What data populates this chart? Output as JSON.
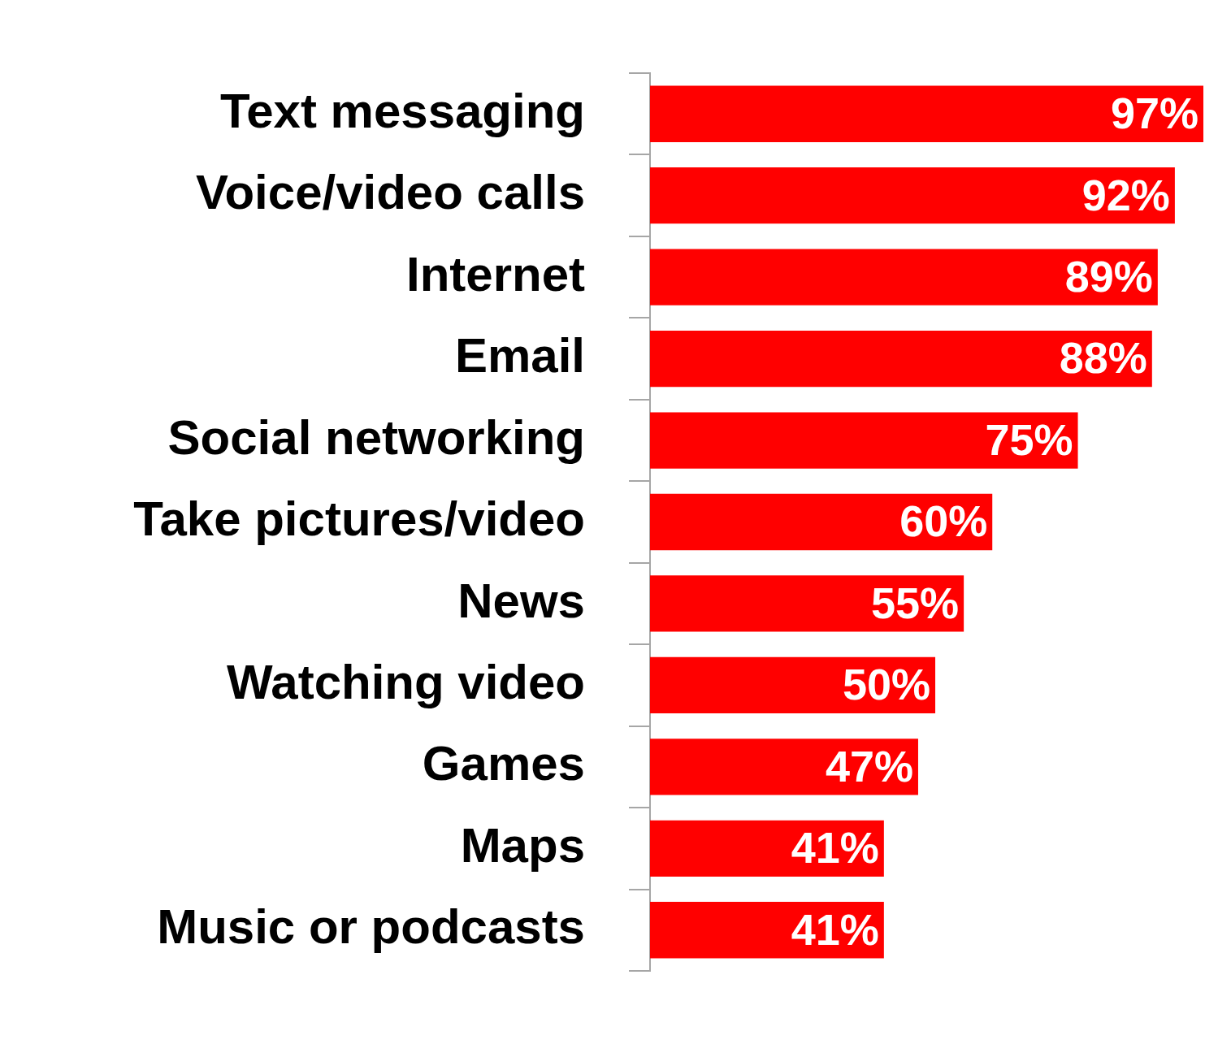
{
  "chart_data": {
    "type": "bar",
    "orientation": "horizontal",
    "categories": [
      "Text messaging",
      "Voice/video calls",
      "Internet",
      "Email",
      "Social networking",
      "Take pictures/video",
      "News",
      "Watching video",
      "Games",
      "Maps",
      "Music or podcasts"
    ],
    "values": [
      97,
      92,
      89,
      88,
      75,
      60,
      55,
      50,
      47,
      41,
      41
    ],
    "value_labels": [
      "97%",
      "92%",
      "89%",
      "88%",
      "75%",
      "60%",
      "55%",
      "50%",
      "47%",
      "41%",
      "41%"
    ],
    "color": "#ff0000",
    "tick_labels": "y",
    "grid": false,
    "legend": false
  }
}
